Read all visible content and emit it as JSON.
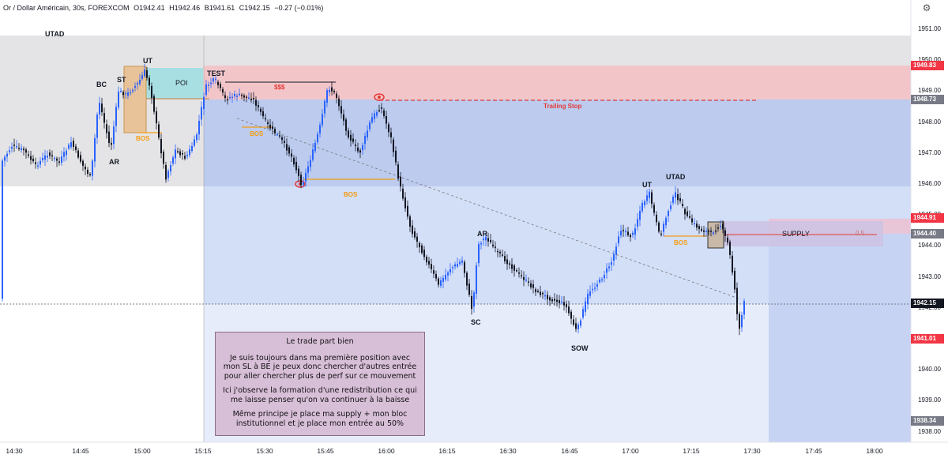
{
  "header": {
    "symbol_description": "Or / Dollar Américain, 30s, FOREXCOM",
    "open": "O1942.41",
    "high": "H1942.46",
    "low": "B1941.61",
    "close": "C1942.15",
    "change": "−0.27 (−0.01%)"
  },
  "settings_icon": "gear-icon",
  "price_axis": {
    "labels": [
      "1951.00",
      "1950.00",
      "1949.00",
      "1948.00",
      "1947.00",
      "1946.00",
      "1945.00",
      "1944.00",
      "1943.00",
      "1942.00",
      "1941.00",
      "1940.00",
      "1939.00",
      "1938.00"
    ],
    "badges": [
      {
        "text": "1949.83",
        "color": "#f23645"
      },
      {
        "text": "1948.73",
        "color": "#787b86"
      },
      {
        "text": "1944.91",
        "color": "#f23645"
      },
      {
        "text": "1944.40",
        "color": "#787b86"
      },
      {
        "text": "1942.15",
        "color": "#131722"
      },
      {
        "text": "1941.01",
        "color": "#f23645"
      },
      {
        "text": "1938.34",
        "color": "#787b86"
      }
    ]
  },
  "time_axis": {
    "labels": [
      "14:30",
      "14:45",
      "15:00",
      "15:15",
      "15:30",
      "15:45",
      "16:00",
      "16:15",
      "16:30",
      "16:45",
      "17:00",
      "17:15",
      "17:30",
      "17:45",
      "18:00"
    ]
  },
  "annotations": {
    "utad_top": "UTAD",
    "bc": "BC",
    "st": "ST",
    "ut_left": "UT",
    "ar_left": "AR",
    "bos_1": "BOS",
    "poi": "POI",
    "test": "TEST",
    "sss": "$$$",
    "bos_2": "BOS",
    "bos_3": "BOS",
    "trailing_stop": "Trailing Stop",
    "ar_mid": "AR",
    "sc": "SC",
    "sow": "SOW",
    "ut_right": "UT",
    "utad_right": "UTAD",
    "bos_4": "BOS",
    "supply": "SUPPLY",
    "half": "0.5"
  },
  "note": {
    "title": "Le trade part bien",
    "p1": "Je suis toujours dans ma première position avec mon SL à BE je peux donc chercher d'autres entrée pour aller chercher plus de perf sur ce mouvement",
    "p2": "Ici j'observe la formation d'une redistribution ce qui me laisse penser qu'on va continuer à la baisse",
    "p3": "Même principe je place ma supply + mon bloc institutionnel et je place mon entrée au 50%"
  },
  "colors": {
    "up": "#2962ff",
    "down": "#131722",
    "stop_zone": "#f2c6c9",
    "profit_zone": "#c6d3f3",
    "range_zone": "#e4e4e6",
    "poi_zone": "#a8dfe2",
    "supply_zone": "#d6c6e6",
    "accent_orange": "#f39c12",
    "accent_red": "#e53935"
  }
}
